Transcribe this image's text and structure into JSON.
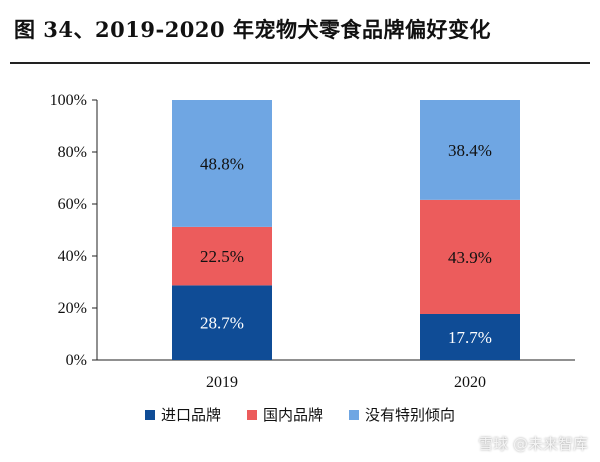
{
  "title": "图 34、2019-2020 年宠物犬零食品牌偏好变化",
  "watermark": "雪球 @未来智库",
  "chart_data": {
    "type": "bar",
    "stacked": true,
    "categories": [
      "2019",
      "2020"
    ],
    "series": [
      {
        "name": "进口品牌",
        "values": [
          28.7,
          17.7
        ],
        "labels": [
          "28.7%",
          "17.7%"
        ],
        "color": "#0f4c96"
      },
      {
        "name": "国内品牌",
        "values": [
          22.5,
          43.9
        ],
        "labels": [
          "22.5%",
          "43.9%"
        ],
        "color": "#ec5c5c"
      },
      {
        "name": "没有特别倾向",
        "values": [
          48.8,
          38.4
        ],
        "labels": [
          "48.8%",
          "38.4%"
        ],
        "color": "#6fa6e3"
      }
    ],
    "yticks": [
      "0%",
      "20%",
      "40%",
      "60%",
      "80%",
      "100%"
    ],
    "ylim": [
      0,
      100
    ],
    "legend_position": "bottom",
    "grid": false
  }
}
